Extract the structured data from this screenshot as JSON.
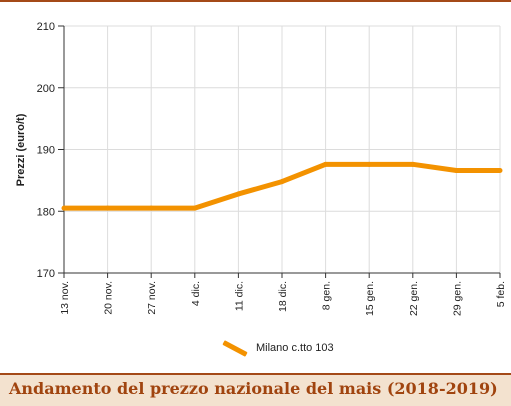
{
  "chart_data": {
    "type": "line",
    "title": "Andamento del prezzo nazionale del mais (2018-2019)",
    "ylabel": "Prezzi (euro/t)",
    "xlabel": "",
    "ylim": [
      170,
      210
    ],
    "yticks": [
      170,
      180,
      190,
      200,
      210
    ],
    "categories": [
      "13 nov.",
      "20 nov.",
      "27 nov.",
      "4 dic.",
      "11 dic.",
      "18 dic.",
      "8 gen.",
      "15 gen.",
      "22 gen.",
      "29 gen.",
      "5 feb."
    ],
    "series": [
      {
        "name": "Milano  c.tto 103",
        "color": "#f39200",
        "values": [
          180.5,
          180.5,
          180.5,
          180.5,
          182.8,
          184.8,
          187.6,
          187.6,
          187.6,
          186.6,
          186.6
        ]
      }
    ],
    "grid": true,
    "legend_position": "bottom-center"
  }
}
